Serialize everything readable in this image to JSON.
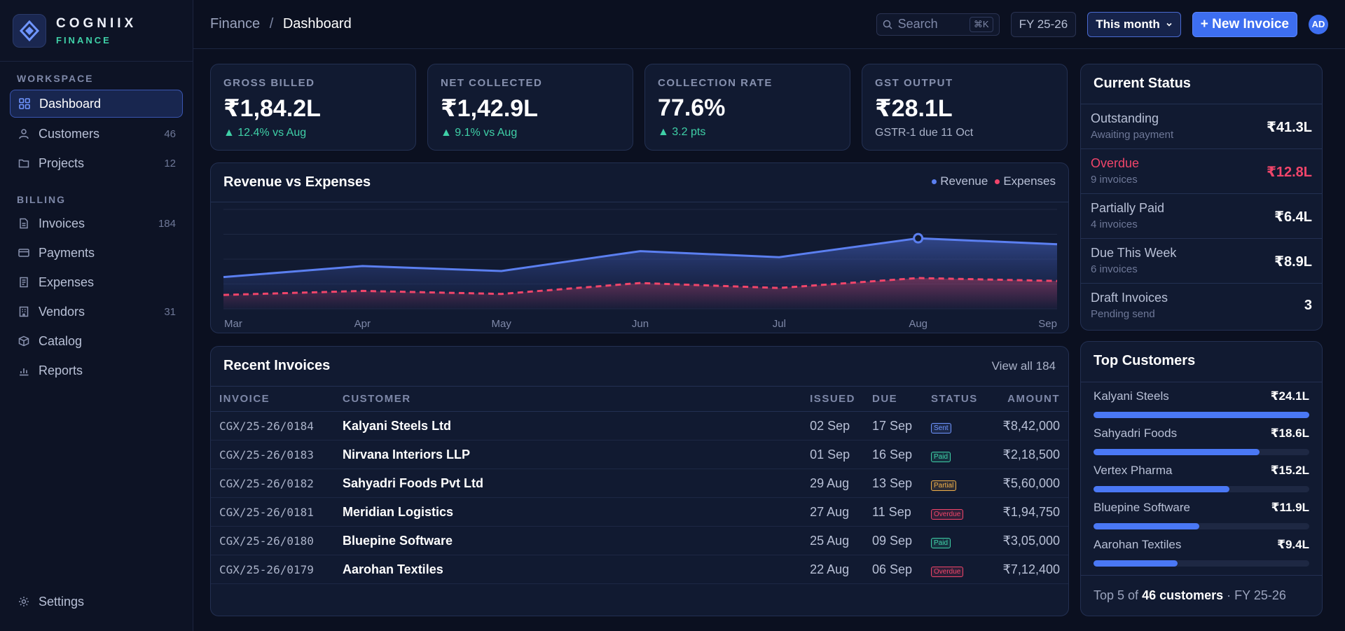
{
  "brand": {
    "name": "COGNIIX",
    "sub": "FINANCE"
  },
  "sidebar": {
    "sections": [
      {
        "label": "WORKSPACE"
      },
      {
        "label": "BILLING"
      }
    ],
    "workspace_items": [
      {
        "label": "Dashboard",
        "icon": "grid-icon",
        "count": ""
      },
      {
        "label": "Customers",
        "icon": "user-icon",
        "count": "46"
      },
      {
        "label": "Projects",
        "icon": "folder-icon",
        "count": "12"
      }
    ],
    "billing_items": [
      {
        "label": "Invoices",
        "icon": "document-icon",
        "count": "184"
      },
      {
        "label": "Payments",
        "icon": "card-icon",
        "count": ""
      },
      {
        "label": "Expenses",
        "icon": "receipt-icon",
        "count": ""
      },
      {
        "label": "Vendors",
        "icon": "building-icon",
        "count": "31"
      },
      {
        "label": "Catalog",
        "icon": "box-icon",
        "count": ""
      },
      {
        "label": "Reports",
        "icon": "bar-chart-icon",
        "count": ""
      }
    ],
    "settings_label": "Settings"
  },
  "topbar": {
    "crumb_parent": "Finance",
    "crumb_sep": "/",
    "crumb_current": "Dashboard",
    "search_placeholder": "Search",
    "search_kbd": "⌘K",
    "fy": "FY 25-26",
    "period": "This month",
    "new_invoice": "+ New Invoice",
    "avatar": "AD"
  },
  "kpis": [
    {
      "label": "GROSS BILLED",
      "value": "₹1,84.2L",
      "delta": "12.4% vs Aug",
      "up": true
    },
    {
      "label": "NET COLLECTED",
      "value": "₹1,42.9L",
      "delta": "9.1% vs Aug",
      "up": true
    },
    {
      "label": "COLLECTION RATE",
      "value": "77.6%",
      "delta": "3.2 pts",
      "up": true
    },
    {
      "label": "GST OUTPUT",
      "value": "₹28.1L",
      "delta": "GSTR-1 due 11 Oct",
      "up": false
    }
  ],
  "chart_data": {
    "type": "area",
    "title": "Revenue vs Expenses",
    "categories": [
      "Mar",
      "Apr",
      "May",
      "Jun",
      "Jul",
      "Aug",
      "Sep"
    ],
    "series": [
      {
        "name": "Revenue",
        "values": [
          32,
          43,
          38,
          58,
          52,
          71,
          65
        ],
        "color": "#5b7ff0"
      },
      {
        "name": "Expenses",
        "values": [
          14,
          18,
          15,
          26,
          21,
          31,
          28
        ],
        "color": "#f0456a"
      }
    ],
    "ylim": [
      0,
      100
    ],
    "highlight_index": 5,
    "legend": "top-right",
    "grid": true
  },
  "invoices": {
    "title": "Recent Invoices",
    "view_all": "View all 184",
    "headers": [
      "INVOICE",
      "CUSTOMER",
      "ISSUED",
      "DUE",
      "STATUS",
      "AMOUNT"
    ],
    "rows": [
      {
        "id": "CGX/25-26/0184",
        "customer": "Kalyani Steels Ltd",
        "issued": "02 Sep",
        "due": "17 Sep",
        "status": "Sent",
        "amount": "₹8,42,000"
      },
      {
        "id": "CGX/25-26/0183",
        "customer": "Nirvana Interiors LLP",
        "issued": "01 Sep",
        "due": "16 Sep",
        "status": "Paid",
        "amount": "₹2,18,500"
      },
      {
        "id": "CGX/25-26/0182",
        "customer": "Sahyadri Foods Pvt Ltd",
        "issued": "29 Aug",
        "due": "13 Sep",
        "status": "Partial",
        "amount": "₹5,60,000"
      },
      {
        "id": "CGX/25-26/0181",
        "customer": "Meridian Logistics",
        "issued": "27 Aug",
        "due": "11 Sep",
        "status": "Overdue",
        "amount": "₹1,94,750"
      },
      {
        "id": "CGX/25-26/0180",
        "customer": "Bluepine Software",
        "issued": "25 Aug",
        "due": "09 Sep",
        "status": "Paid",
        "amount": "₹3,05,000"
      },
      {
        "id": "CGX/25-26/0179",
        "customer": "Aarohan Textiles",
        "issued": "22 Aug",
        "due": "06 Sep",
        "status": "Overdue",
        "amount": "₹7,12,400"
      }
    ],
    "status_colors": {
      "Sent": "#6f95ff",
      "Paid": "#3fd0a7",
      "Partial": "#f0b04a",
      "Overdue": "#f0456a"
    }
  },
  "current_status": {
    "title": "Current Status",
    "rows": [
      {
        "title": "Outstanding",
        "sub": "Awaiting payment",
        "value": "₹41.3L",
        "alert": false
      },
      {
        "title": "Overdue",
        "sub": "9 invoices",
        "value": "₹12.8L",
        "alert": true
      },
      {
        "title": "Partially Paid",
        "sub": "4 invoices",
        "value": "₹6.4L",
        "alert": false
      },
      {
        "title": "Due This Week",
        "sub": "6 invoices",
        "value": "₹8.9L",
        "alert": false
      },
      {
        "title": "Draft Invoices",
        "sub": "Pending send",
        "value": "3",
        "alert": false
      }
    ]
  },
  "top_customers": {
    "title": "Top Customers",
    "rows": [
      {
        "name": "Kalyani Steels",
        "amount": "₹24.1L",
        "share": 1.0
      },
      {
        "name": "Sahyadri Foods",
        "amount": "₹18.6L",
        "share": 0.77
      },
      {
        "name": "Vertex Pharma",
        "amount": "₹15.2L",
        "share": 0.63
      },
      {
        "name": "Bluepine Software",
        "amount": "₹11.9L",
        "share": 0.49
      },
      {
        "name": "Aarohan Textiles",
        "amount": "₹9.4L",
        "share": 0.39
      }
    ],
    "footer_prefix": "Top 5 of",
    "footer_bold": "46 customers",
    "footer_suffix": "· FY 25-26"
  },
  "colors": {
    "accent": "#3d6ef0",
    "positive": "#3fd0a7",
    "danger": "#f0456a"
  }
}
